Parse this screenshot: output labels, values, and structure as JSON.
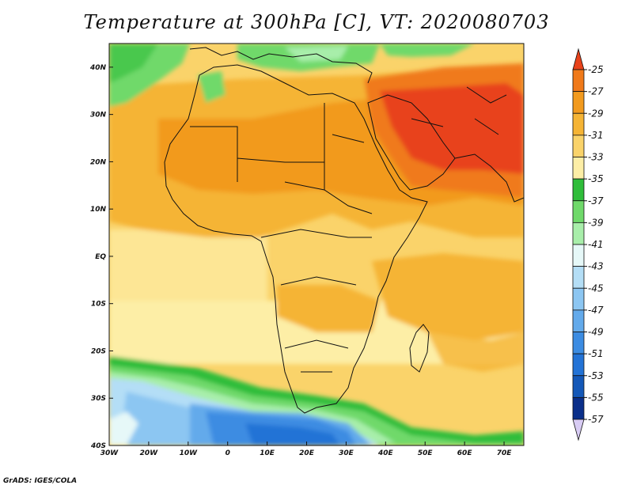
{
  "title": "Temperature at 300hPa [C], VT: 2020080703",
  "credit": "GrADS: IGES/COLA",
  "chart_data": {
    "type": "heatmap",
    "title": "Temperature at 300hPa [C], VT: 2020080703",
    "lon_range": [
      -30,
      75
    ],
    "lat_range": [
      -40,
      45
    ],
    "x_ticks": [
      "30W",
      "20W",
      "10W",
      "0",
      "10E",
      "20E",
      "30E",
      "40E",
      "50E",
      "60E",
      "70E"
    ],
    "y_ticks": [
      "40S",
      "30S",
      "20S",
      "10S",
      "EQ",
      "10N",
      "20N",
      "30N",
      "40N"
    ],
    "colorbar": {
      "labels": [
        "-25",
        "-27",
        "-29",
        "-31",
        "-33",
        "-35",
        "-37",
        "-39",
        "-41",
        "-43",
        "-45",
        "-47",
        "-49",
        "-51",
        "-53",
        "-55",
        "-57"
      ],
      "colors": [
        "#e8421a",
        "#f07a1a",
        "#f29a1e",
        "#f5b435",
        "#fad36a",
        "#fdeea6",
        "#2fbd3a",
        "#6fd96a",
        "#a8eeaa",
        "#e6f8f8",
        "#b4def6",
        "#8cc6f2",
        "#63aaeb",
        "#3c8ce2",
        "#2373d6",
        "#1458b8",
        "#0a2f8a"
      ],
      "top_color": "#e8421a",
      "bottom_color": "#d8ccf4"
    }
  }
}
